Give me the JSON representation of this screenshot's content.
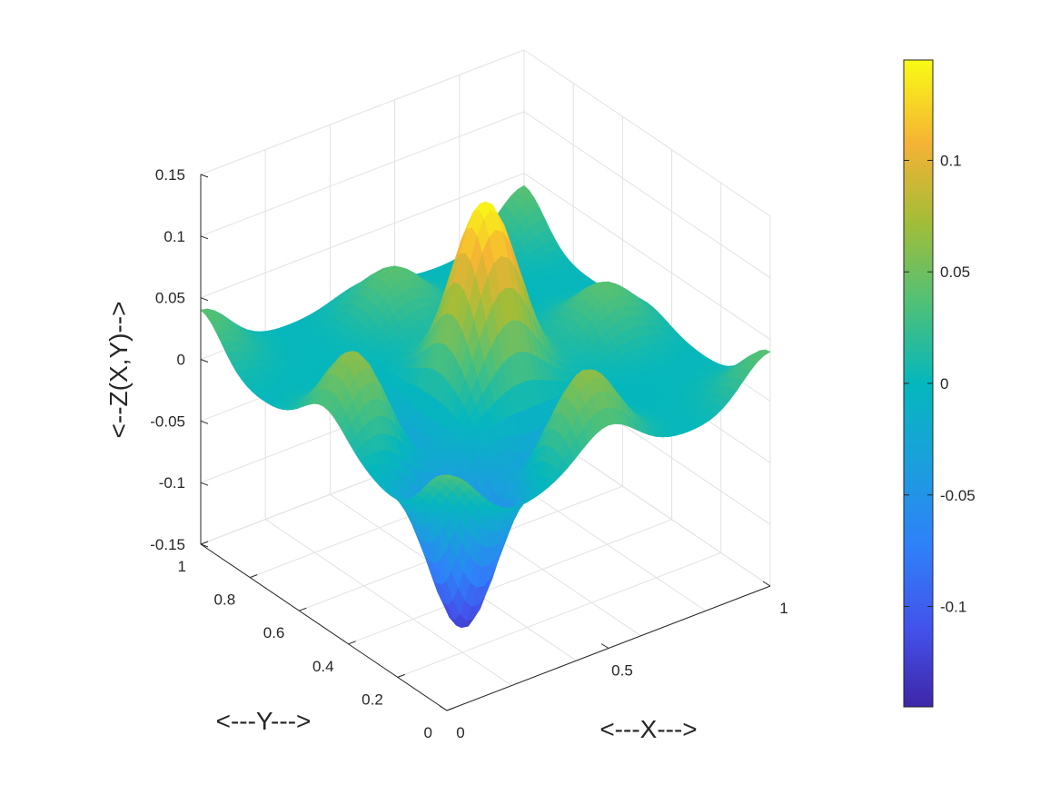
{
  "chart_data": {
    "type": "surface",
    "title": "",
    "xlabel": "<---X--->",
    "ylabel": "<---Y--->",
    "zlabel": "<--Z(X,Y)-->",
    "xlim": [
      0,
      1
    ],
    "ylim": [
      0,
      1
    ],
    "zlim": [
      -0.15,
      0.15
    ],
    "x_ticks": [
      "0",
      "0.5",
      "1"
    ],
    "y_ticks": [
      "0",
      "0.2",
      "0.4",
      "0.6",
      "0.8",
      "1"
    ],
    "z_ticks": [
      "-0.15",
      "-0.1",
      "-0.05",
      "0",
      "0.05",
      "0.1",
      "0.15"
    ],
    "grid": true,
    "colormap": "parula",
    "colorbar": {
      "position": "right",
      "range": [
        -0.145,
        0.145
      ],
      "ticks": [
        "-0.1",
        "-0.05",
        "0",
        "0.05",
        "0.1"
      ]
    },
    "surface_features": [
      {
        "x": 0.0,
        "y": 0.0,
        "z": 0.04
      },
      {
        "x": 1.0,
        "y": 0.0,
        "z": 0.04
      },
      {
        "x": 0.0,
        "y": 1.0,
        "z": 0.04
      },
      {
        "x": 1.0,
        "y": 1.0,
        "z": 0.04
      },
      {
        "x": 0.5,
        "y": 0.5,
        "z": 0.145
      },
      {
        "x": 0.5,
        "y": 0.13,
        "z": 0.12
      },
      {
        "x": 0.13,
        "y": 0.5,
        "z": 0.11
      },
      {
        "x": 0.5,
        "y": 0.87,
        "z": 0.04
      },
      {
        "x": 0.87,
        "y": 0.5,
        "z": 0.04
      },
      {
        "x": 0.2,
        "y": 0.2,
        "z": -0.13
      },
      {
        "x": 0.5,
        "y": 0.2,
        "z": -0.1
      },
      {
        "x": 0.2,
        "y": 0.5,
        "z": -0.08
      }
    ]
  }
}
